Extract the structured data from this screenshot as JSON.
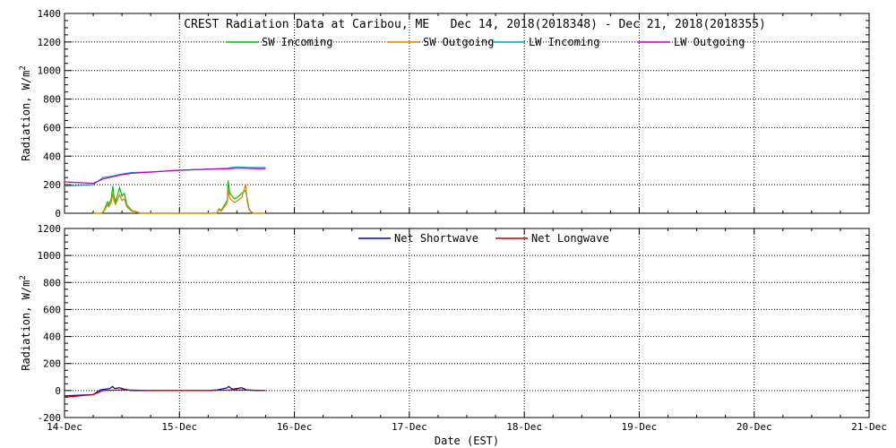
{
  "chart_data": [
    {
      "type": "line",
      "title": "CREST Radiation Data at Caribou, ME   Dec 14, 2018(2018348) - Dec 21, 2018(2018355)",
      "xlabel": "",
      "ylabel": "Radiation, W/m^2",
      "xlim": [
        "2018-12-14",
        "2018-12-21"
      ],
      "ylim": [
        0,
        1400
      ],
      "yticks": [
        0,
        200,
        400,
        600,
        800,
        1000,
        1200,
        1400
      ],
      "grid": true,
      "legend_position": "top",
      "series": [
        {
          "name": "SW Incoming",
          "color": "#00c000",
          "x": [
            "2018-12-14 06:00",
            "2018-12-14 07:00",
            "2018-12-14 07:45",
            "2018-12-14 08:15",
            "2018-12-14 08:45",
            "2018-12-14 09:00",
            "2018-12-14 09:15",
            "2018-12-14 09:45",
            "2018-12-14 10:05",
            "2018-12-14 10:20",
            "2018-12-14 10:40",
            "2018-12-14 11:00",
            "2018-12-14 11:30",
            "2018-12-14 12:00",
            "2018-12-14 12:30",
            "2018-12-14 13:00",
            "2018-12-14 14:00",
            "2018-12-14 16:00",
            "2018-12-14 22:00",
            "2018-12-15 06:00",
            "2018-12-15 07:00",
            "2018-12-15 07:45",
            "2018-12-15 08:15",
            "2018-12-15 08:45",
            "2018-12-15 09:15",
            "2018-12-15 09:45",
            "2018-12-15 10:00",
            "2018-12-15 10:10",
            "2018-12-15 10:30",
            "2018-12-15 11:00",
            "2018-12-15 11:30",
            "2018-12-15 12:00",
            "2018-12-15 13:00",
            "2018-12-15 13:50",
            "2018-12-15 14:10",
            "2018-12-15 14:30",
            "2018-12-15 15:00",
            "2018-12-15 15:30",
            "2018-12-15 16:00",
            "2018-12-15 18:00"
          ],
          "y": [
            0,
            0,
            0,
            20,
            60,
            80,
            60,
            100,
            190,
            120,
            80,
            120,
            180,
            120,
            140,
            60,
            20,
            0,
            0,
            0,
            0,
            0,
            30,
            20,
            50,
            80,
            90,
            230,
            140,
            120,
            100,
            110,
            140,
            160,
            100,
            30,
            10,
            0,
            0,
            0
          ]
        },
        {
          "name": "SW Outgoing",
          "color": "#e08000",
          "x": [
            "2018-12-14 06:00",
            "2018-12-14 07:00",
            "2018-12-14 07:45",
            "2018-12-14 08:15",
            "2018-12-14 08:45",
            "2018-12-14 09:00",
            "2018-12-14 09:15",
            "2018-12-14 09:45",
            "2018-12-14 10:05",
            "2018-12-14 10:20",
            "2018-12-14 10:40",
            "2018-12-14 11:00",
            "2018-12-14 11:30",
            "2018-12-14 12:00",
            "2018-12-14 12:30",
            "2018-12-14 13:00",
            "2018-12-14 14:00",
            "2018-12-14 16:00",
            "2018-12-14 22:00",
            "2018-12-15 06:00",
            "2018-12-15 07:00",
            "2018-12-15 07:45",
            "2018-12-15 08:15",
            "2018-12-15 08:45",
            "2018-12-15 09:15",
            "2018-12-15 09:45",
            "2018-12-15 10:00",
            "2018-12-15 10:10",
            "2018-12-15 10:30",
            "2018-12-15 11:00",
            "2018-12-15 11:30",
            "2018-12-15 12:00",
            "2018-12-15 13:00",
            "2018-12-15 13:50",
            "2018-12-15 14:10",
            "2018-12-15 14:30",
            "2018-12-15 15:00",
            "2018-12-15 15:30",
            "2018-12-15 16:00",
            "2018-12-15 18:00"
          ],
          "y": [
            0,
            0,
            0,
            15,
            45,
            60,
            45,
            75,
            140,
            90,
            60,
            90,
            130,
            90,
            100,
            45,
            15,
            0,
            0,
            0,
            0,
            0,
            25,
            15,
            40,
            60,
            70,
            170,
            105,
            90,
            75,
            85,
            110,
            200,
            80,
            25,
            8,
            0,
            0,
            0
          ]
        },
        {
          "name": "LW Incoming",
          "color": "#00a0c0",
          "x": [
            "2018-12-14 00:00",
            "2018-12-14 06:00",
            "2018-12-14 08:00",
            "2018-12-14 10:00",
            "2018-12-14 12:00",
            "2018-12-14 14:00",
            "2018-12-14 18:00",
            "2018-12-15 00:00",
            "2018-12-15 06:00",
            "2018-12-15 10:00",
            "2018-12-15 12:00",
            "2018-12-15 14:00",
            "2018-12-15 16:00",
            "2018-12-15 18:00"
          ],
          "y": [
            190,
            200,
            250,
            260,
            275,
            285,
            290,
            300,
            310,
            315,
            325,
            320,
            320,
            320
          ]
        },
        {
          "name": "LW Outgoing",
          "color": "#c000c0",
          "x": [
            "2018-12-14 00:00",
            "2018-12-14 06:00",
            "2018-12-14 08:00",
            "2018-12-14 10:00",
            "2018-12-14 12:00",
            "2018-12-14 14:00",
            "2018-12-14 18:00",
            "2018-12-15 00:00",
            "2018-12-15 06:00",
            "2018-12-15 10:00",
            "2018-12-15 12:00",
            "2018-12-15 14:00",
            "2018-12-15 16:00",
            "2018-12-15 18:00"
          ],
          "y": [
            220,
            210,
            240,
            255,
            270,
            280,
            288,
            302,
            308,
            312,
            315,
            315,
            312,
            312
          ]
        }
      ]
    },
    {
      "type": "line",
      "title": "",
      "xlabel": "Date (EST)",
      "ylabel": "Radiation, W/m^2",
      "xlim": [
        "2018-12-14",
        "2018-12-21"
      ],
      "ylim": [
        -200,
        1200
      ],
      "yticks": [
        -200,
        0,
        200,
        400,
        600,
        800,
        1000,
        1200
      ],
      "xticks": [
        "14-Dec",
        "15-Dec",
        "16-Dec",
        "17-Dec",
        "18-Dec",
        "19-Dec",
        "20-Dec",
        "21-Dec"
      ],
      "grid": true,
      "legend_position": "top",
      "series": [
        {
          "name": "Net Shortwave",
          "color": "#0000c0",
          "x": [
            "2018-12-14 00:00",
            "2018-12-14 06:00",
            "2018-12-14 07:30",
            "2018-12-14 08:30",
            "2018-12-14 09:30",
            "2018-12-14 10:00",
            "2018-12-14 10:30",
            "2018-12-14 11:30",
            "2018-12-14 12:30",
            "2018-12-14 14:00",
            "2018-12-14 18:00",
            "2018-12-15 06:00",
            "2018-12-15 08:00",
            "2018-12-15 10:00",
            "2018-12-15 10:15",
            "2018-12-15 11:00",
            "2018-12-15 12:00",
            "2018-12-15 13:00",
            "2018-12-15 14:00",
            "2018-12-15 16:00",
            "2018-12-15 18:00"
          ],
          "y": [
            -40,
            -30,
            5,
            10,
            15,
            30,
            15,
            20,
            10,
            0,
            0,
            0,
            5,
            20,
            30,
            10,
            15,
            20,
            5,
            0,
            0
          ]
        },
        {
          "name": "Net Longwave",
          "color": "#c00000",
          "x": [
            "2018-12-14 00:00",
            "2018-12-14 06:00",
            "2018-12-14 08:00",
            "2018-12-14 12:00",
            "2018-12-14 18:00",
            "2018-12-15 06:00",
            "2018-12-15 12:00",
            "2018-12-15 18:00"
          ],
          "y": [
            -50,
            -30,
            0,
            5,
            0,
            0,
            5,
            0
          ]
        }
      ]
    }
  ]
}
